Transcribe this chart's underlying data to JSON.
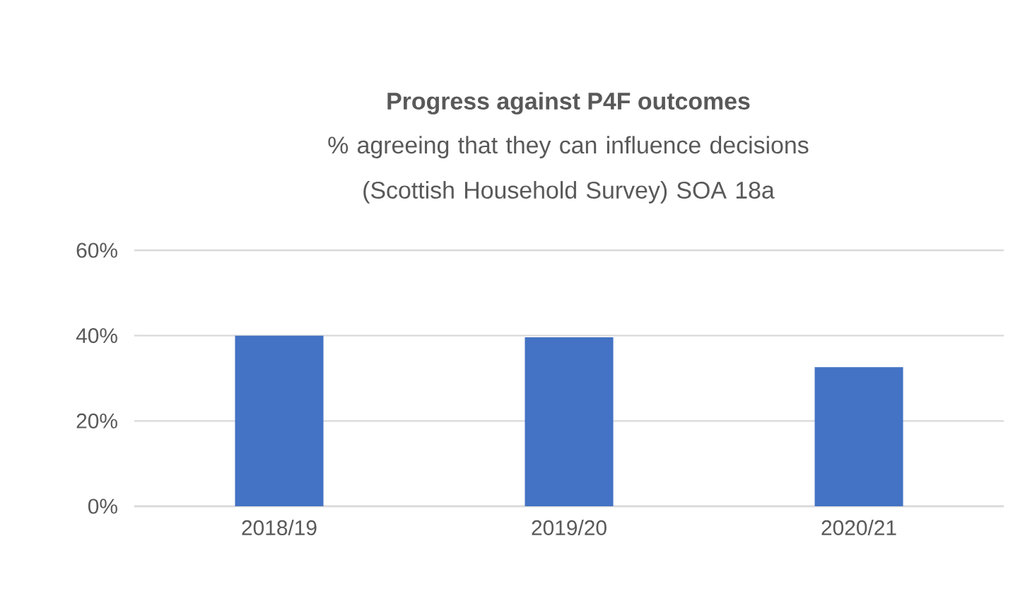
{
  "chart_data": {
    "type": "bar",
    "title": "Progress against P4F outcomes",
    "subtitle": "% agreeing that they can influence decisions (Scottish Household Survey) SOA 18a",
    "categories": [
      "2018/19",
      "2019/20",
      "2020/21"
    ],
    "values": [
      40,
      39.6,
      32.6
    ],
    "color": "#4472c4",
    "ylim": [
      0,
      60
    ],
    "yticks": [
      {
        "value": 0,
        "label": "0%"
      },
      {
        "value": 20,
        "label": "20%"
      },
      {
        "value": 40,
        "label": "40%"
      },
      {
        "value": 60,
        "label": "60%"
      }
    ],
    "grid": "y"
  }
}
